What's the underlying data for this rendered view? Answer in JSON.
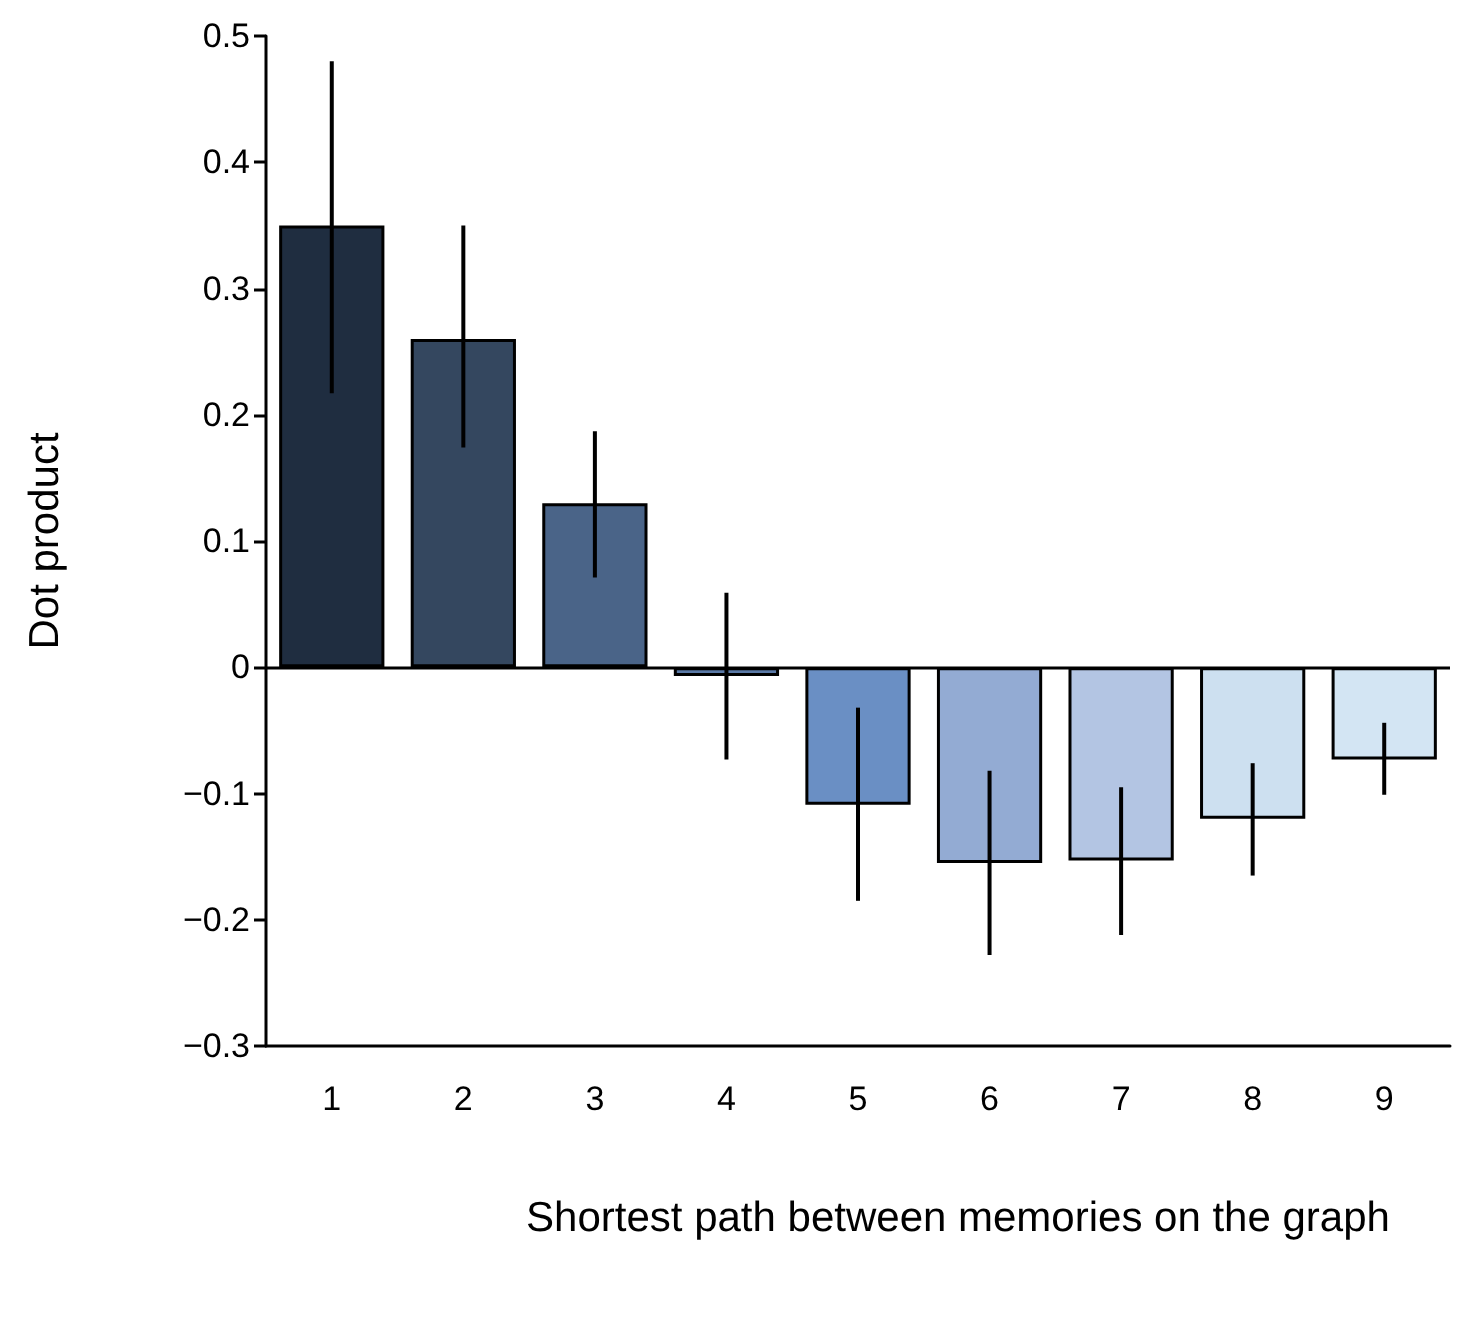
{
  "chart_data": {
    "type": "bar",
    "xlabel": "Shortest path between memories on the graph",
    "ylabel": "Dot product",
    "categories": [
      "1",
      "2",
      "3",
      "4",
      "5",
      "6",
      "7",
      "8",
      "9"
    ],
    "values": [
      0.35,
      0.26,
      0.13,
      -0.007,
      -0.109,
      -0.155,
      -0.153,
      -0.12,
      -0.073
    ],
    "colors": [
      "#1f2d40",
      "#34475f",
      "#4a6488",
      "#5a79a6",
      "#6a8fc4",
      "#93abd3",
      "#b3c5e3",
      "#cde0f0",
      "#d3e5f3"
    ],
    "errors": [
      [
        0.217,
        0.48
      ],
      [
        0.174,
        0.35
      ],
      [
        0.071,
        0.187
      ],
      [
        -0.073,
        0.059
      ],
      [
        -0.185,
        -0.032
      ],
      [
        -0.228,
        -0.082
      ],
      [
        -0.212,
        -0.095
      ],
      [
        -0.165,
        -0.076
      ],
      [
        -0.101,
        -0.044
      ]
    ],
    "ylim": [
      -0.3,
      0.5
    ],
    "yticks": [
      -0.3,
      -0.2,
      -0.1,
      0,
      0.1,
      0.2,
      0.3,
      0.4,
      0.5
    ],
    "ref_lines": [
      {
        "axis": "y",
        "value": 0,
        "color": "#000000"
      }
    ]
  }
}
